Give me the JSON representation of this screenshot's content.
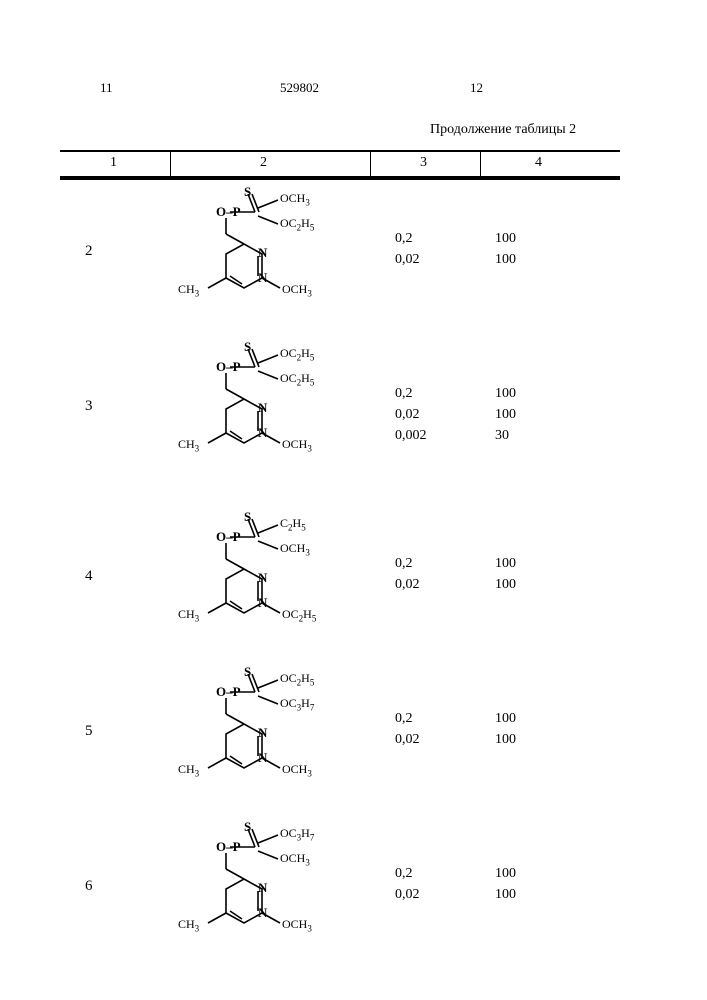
{
  "doc_number": "529802",
  "page_left": "11",
  "page_right": "12",
  "continuation": "Продолжение таблицы 2",
  "col_headers": [
    "1",
    "2",
    "3",
    "4"
  ],
  "rows": [
    {
      "idx": "2",
      "struct": {
        "r1": "OCH₃",
        "r2": "OC₂H₅",
        "ring_sub": "OCH₃"
      },
      "c3": [
        "0,2",
        "0,02"
      ],
      "c4": [
        "100",
        "100"
      ]
    },
    {
      "idx": "3",
      "struct": {
        "r1": "OC₂H₅",
        "r2": "OC₂H₅",
        "ring_sub": "OCH₃"
      },
      "c3": [
        "0,2",
        "0,02",
        "0,002"
      ],
      "c4": [
        "100",
        "100",
        "30"
      ]
    },
    {
      "idx": "4",
      "struct": {
        "r1": "C₂H₅",
        "r2": "OCH₃",
        "ring_sub": "OC₂H₅"
      },
      "c3": [
        "0,2",
        "0,02"
      ],
      "c4": [
        "100",
        "100"
      ]
    },
    {
      "idx": "5",
      "struct": {
        "r1": "OC₂H₅",
        "r2": "OC₃H₇",
        "ring_sub": "OCH₃"
      },
      "c3": [
        "0,2",
        "0,02"
      ],
      "c4": [
        "100",
        "100"
      ]
    },
    {
      "idx": "6",
      "struct": {
        "r1": "OC₃H₇",
        "r2": "OCH₃",
        "ring_sub": "OCH₃"
      },
      "c3": [
        "0,2",
        "0,02"
      ],
      "c4": [
        "100",
        "100"
      ]
    }
  ]
}
